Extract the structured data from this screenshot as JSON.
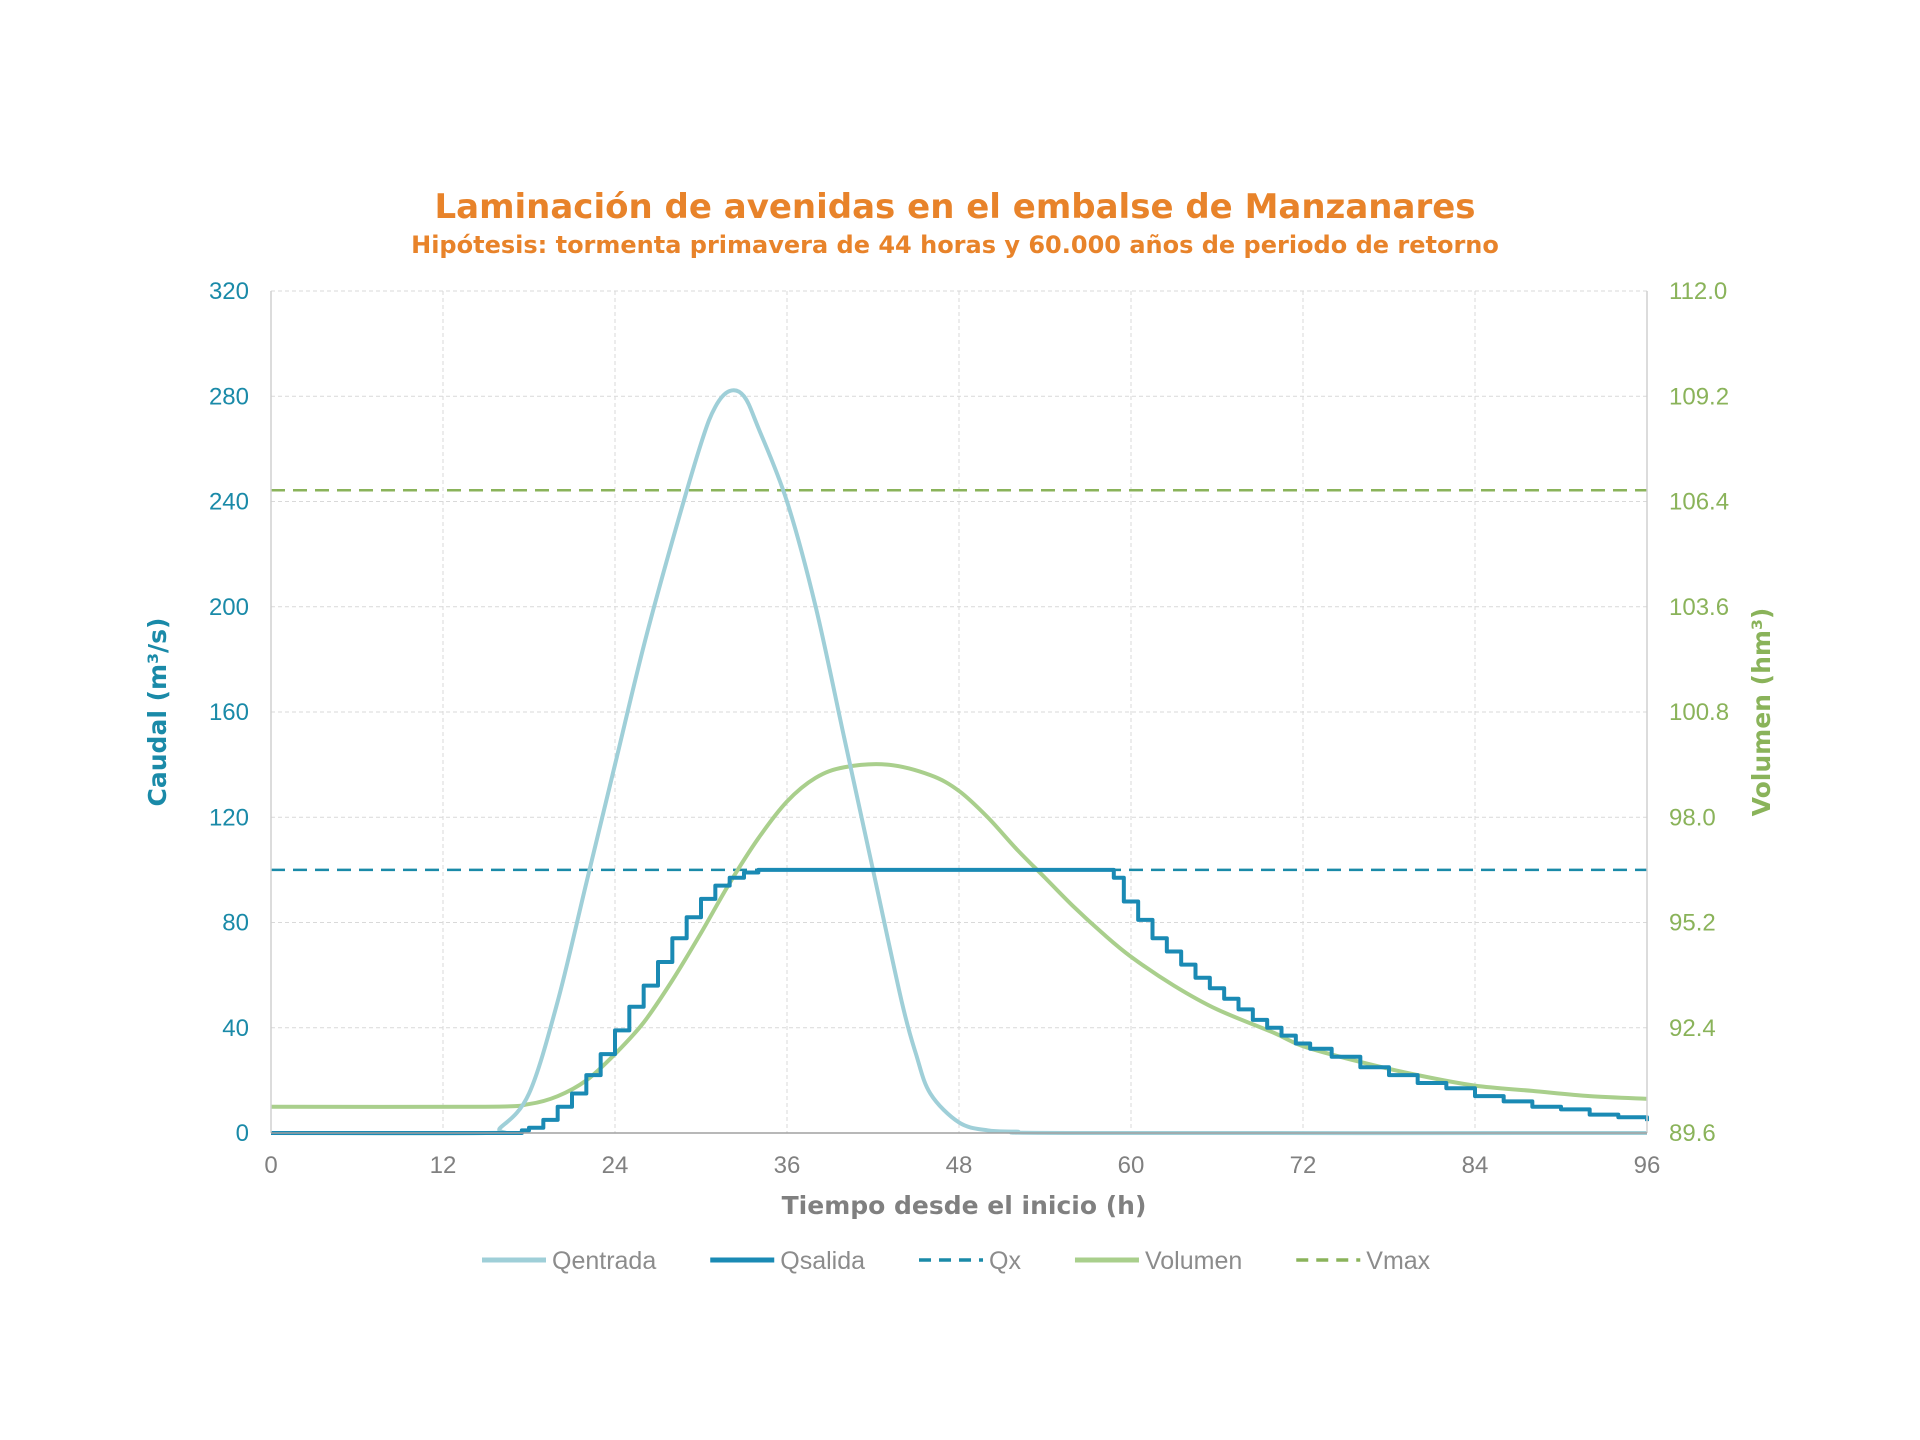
{
  "chart_data": {
    "type": "line",
    "title": "Laminación de avenidas en el embalse de Manzanares",
    "subtitle": "Hipótesis: tormenta primavera de 44 horas y 60.000 años de periodo de retorno",
    "xlabel": "Tiempo desde el inicio (h)",
    "ylabel": "Caudal (m³/s)",
    "y2label": "Volumen (hm³)",
    "xlim": [
      0,
      96
    ],
    "ylim": [
      0,
      320
    ],
    "y2lim": [
      89.6,
      112.0
    ],
    "xticks": [
      "0",
      "12",
      "24",
      "36",
      "48",
      "60",
      "72",
      "84",
      "96"
    ],
    "yticks": [
      "0",
      "40",
      "80",
      "120",
      "160",
      "200",
      "240",
      "280",
      "320"
    ],
    "y2ticks": [
      "89.6",
      "92.4",
      "95.2",
      "98.0",
      "100.8",
      "103.6",
      "106.4",
      "109.2",
      "112.0"
    ],
    "grid": true,
    "legend_position": "bottom",
    "colors": {
      "title": "#e8832a",
      "left_axis": "#1a8aa8",
      "right_axis": "#8ab35a",
      "qentrada": "#9fcfd8",
      "qsalida": "#1a8ab4",
      "qx": "#1a8aa8",
      "volumen": "#a9cf8c",
      "vmax": "#8ab35a"
    },
    "series": [
      {
        "name": "Qentrada",
        "axis": "left",
        "style": "solid",
        "x": [
          0,
          15,
          16,
          18,
          20,
          22,
          24,
          26,
          28,
          30,
          31,
          32,
          33,
          34,
          36,
          38,
          40,
          42,
          44,
          45,
          46,
          48,
          50,
          52,
          56,
          96
        ],
        "y": [
          0,
          0,
          2,
          15,
          50,
          95,
          140,
          185,
          225,
          262,
          276,
          282,
          280,
          268,
          240,
          200,
          150,
          100,
          50,
          30,
          15,
          4,
          1,
          0.5,
          0,
          0
        ]
      },
      {
        "name": "Qsalida",
        "axis": "left",
        "style": "step",
        "x": [
          0,
          17.5,
          18,
          19,
          20,
          21,
          22,
          23,
          24,
          25,
          26,
          27,
          28,
          29,
          30,
          31,
          32,
          33,
          34,
          58.3,
          58.8,
          59.5,
          60.5,
          61.5,
          62.5,
          63.5,
          64.5,
          65.5,
          66.5,
          67.5,
          68.5,
          69.5,
          70.5,
          71.5,
          72.5,
          74,
          76,
          78,
          80,
          82,
          84,
          86,
          88,
          90,
          92,
          94,
          96
        ],
        "y": [
          0,
          1,
          2,
          5,
          10,
          15,
          22,
          30,
          39,
          48,
          56,
          65,
          74,
          82,
          89,
          94,
          97,
          99,
          100,
          100,
          97,
          88,
          81,
          74,
          69,
          64,
          59,
          55,
          51,
          47,
          43,
          40,
          37,
          34,
          32,
          29,
          25,
          22,
          19,
          17,
          14,
          12,
          10,
          9,
          7,
          6,
          4.5
        ]
      },
      {
        "name": "Qx",
        "axis": "left",
        "style": "dashed",
        "x": [
          0,
          96
        ],
        "y": [
          100,
          100
        ]
      },
      {
        "name": "Volumen",
        "axis": "right",
        "style": "solid",
        "x": [
          0,
          15,
          18,
          20,
          22,
          24,
          26,
          28,
          30,
          32,
          34,
          36,
          38,
          40,
          43,
          46,
          48,
          50,
          52,
          54,
          56,
          58,
          60,
          63,
          66,
          70,
          72,
          76,
          80,
          84,
          88,
          92,
          96
        ],
        "y": [
          90.3,
          90.3,
          90.37,
          90.58,
          91.0,
          91.7,
          92.54,
          93.66,
          94.92,
          96.25,
          97.44,
          98.42,
          99.05,
          99.33,
          99.4,
          99.12,
          98.7,
          98.0,
          97.16,
          96.39,
          95.62,
          94.92,
          94.29,
          93.52,
          92.89,
          92.26,
          91.91,
          91.49,
          91.14,
          90.86,
          90.72,
          90.58,
          90.51
        ]
      },
      {
        "name": "Vmax",
        "axis": "right",
        "style": "dashed",
        "x": [
          0,
          96
        ],
        "y": [
          106.7,
          106.7
        ]
      }
    ]
  }
}
